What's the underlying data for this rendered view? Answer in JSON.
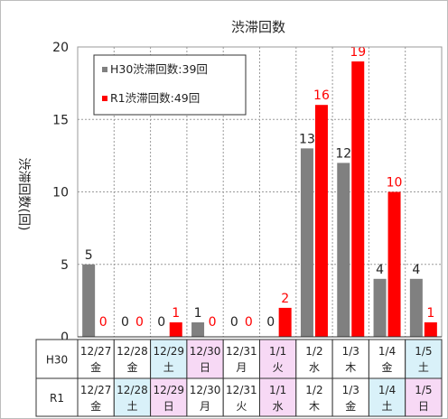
{
  "chart_data": {
    "type": "bar",
    "title": "渋滞回数",
    "ylabel": "渋滞回数(回)",
    "ylim": [
      0,
      20
    ],
    "yticks": [
      0,
      5,
      10,
      15,
      20
    ],
    "grid": true,
    "legend_position": "top-left",
    "categories": [
      "12/27",
      "12/28",
      "12/29",
      "12/30",
      "12/31",
      "1/1",
      "1/2",
      "1/3",
      "1/4",
      "1/5"
    ],
    "series": [
      {
        "name": "H30渋滞回数:39回",
        "color": "#808080",
        "label_color": "#222222",
        "values": [
          5,
          0,
          0,
          1,
          0,
          0,
          13,
          12,
          4,
          4
        ]
      },
      {
        "name": "R1渋滞回数:49回",
        "color": "#ff0000",
        "label_color": "#ff0000",
        "values": [
          0,
          0,
          1,
          0,
          0,
          2,
          16,
          19,
          10,
          1
        ]
      }
    ],
    "table": {
      "rows": [
        {
          "label": "H30",
          "days": [
            "金",
            "金",
            "土",
            "日",
            "月",
            "火",
            "水",
            "木",
            "金",
            "土"
          ],
          "cell_colors": [
            "#ffffff",
            "#ffffff",
            "#d9f1f9",
            "#f7d9f5",
            "#ffffff",
            "#f7d9f5",
            "#ffffff",
            "#ffffff",
            "#ffffff",
            "#d9f1f9"
          ]
        },
        {
          "label": "R1",
          "days": [
            "金",
            "土",
            "日",
            "月",
            "火",
            "水",
            "木",
            "金",
            "土",
            "日"
          ],
          "cell_colors": [
            "#ffffff",
            "#d9f1f9",
            "#f7d9f5",
            "#ffffff",
            "#ffffff",
            "#f7d9f5",
            "#ffffff",
            "#ffffff",
            "#d9f1f9",
            "#f7d9f5"
          ]
        }
      ]
    }
  }
}
